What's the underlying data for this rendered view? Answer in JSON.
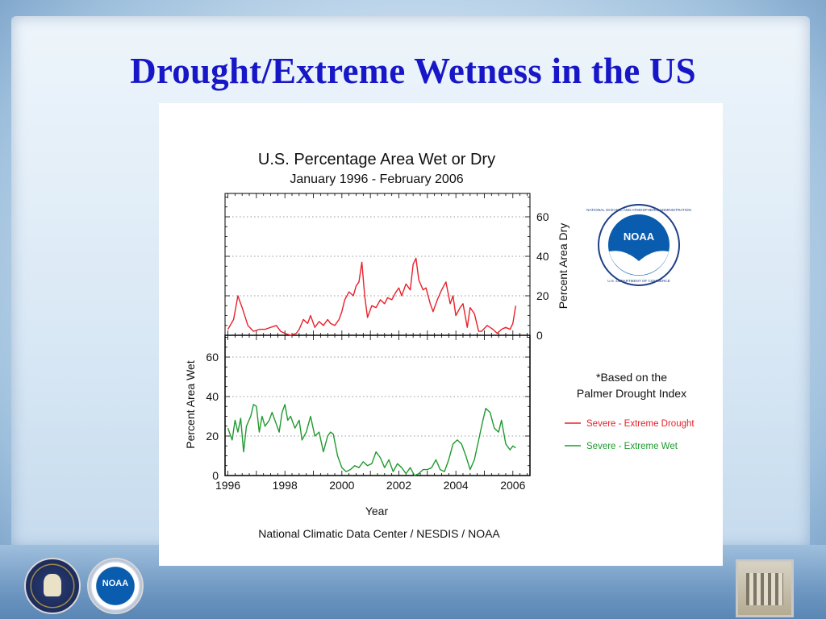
{
  "slide": {
    "title": "Drought/Extreme Wetness in the US"
  },
  "logos": {
    "noaa_text": "NOAA",
    "noaa_ring_text": "NATIONAL OCEANIC AND ATMOSPHERIC ADMINISTRATION",
    "noaa_bottom_text": "U.S. DEPARTMENT OF COMMERCE"
  },
  "colors": {
    "title": "#1717c8",
    "dry": "#e8202a",
    "wet": "#1f9a2e"
  },
  "chart_data": {
    "type": "line",
    "title": "U.S. Percentage Area Wet or Dry",
    "subtitle": "January 1996 - February  2006",
    "xlabel": "Year",
    "source": "National Climatic Data Center / NESDIS / NOAA",
    "note_line1": "*Based on the",
    "note_line2": "Palmer Drought Index",
    "grid": "dotted horizontal",
    "legend_placement": "right",
    "x_ticks": [
      "1996",
      "1998",
      "2000",
      "2002",
      "2004",
      "2006"
    ],
    "xlim": [
      1995.9,
      2006.6
    ],
    "panels": [
      {
        "ylabel": "Percent Area Dry",
        "y_axis_side": "right",
        "ylim": [
          0,
          70
        ],
        "y_ticks": [
          "0",
          "20",
          "40",
          "60"
        ],
        "series": [
          {
            "name": "Severe - Extreme Drought",
            "color": "#e8202a",
            "x": [
              1996.0,
              1996.2,
              1996.35,
              1996.5,
              1996.7,
              1996.9,
              1997.1,
              1997.3,
              1997.5,
              1997.7,
              1997.85,
              1998.0,
              1998.2,
              1998.4,
              1998.5,
              1998.65,
              1998.8,
              1998.9,
              1999.05,
              1999.2,
              1999.35,
              1999.5,
              1999.6,
              1999.75,
              1999.9,
              2000.0,
              2000.1,
              2000.25,
              2000.4,
              2000.5,
              2000.6,
              2000.7,
              2000.8,
              2000.9,
              2001.05,
              2001.2,
              2001.35,
              2001.5,
              2001.6,
              2001.75,
              2001.9,
              2002.0,
              2002.1,
              2002.25,
              2002.4,
              2002.5,
              2002.6,
              2002.7,
              2002.85,
              2002.95,
              2003.1,
              2003.2,
              2003.35,
              2003.5,
              2003.65,
              2003.8,
              2003.9,
              2004.0,
              2004.15,
              2004.25,
              2004.4,
              2004.5,
              2004.65,
              2004.8,
              2004.9,
              2005.1,
              2005.3,
              2005.45,
              2005.6,
              2005.75,
              2005.9,
              2006.0,
              2006.1
            ],
            "values": [
              3,
              8,
              20,
              14,
              5,
              2,
              3,
              3,
              4,
              5,
              2,
              1,
              0,
              1,
              3,
              8,
              6,
              10,
              4,
              7,
              5,
              8,
              6,
              5,
              8,
              12,
              18,
              22,
              20,
              25,
              27,
              37,
              20,
              9,
              15,
              14,
              18,
              16,
              19,
              18,
              22,
              24,
              20,
              26,
              23,
              36,
              39,
              28,
              23,
              24,
              16,
              12,
              18,
              23,
              27,
              16,
              20,
              10,
              14,
              16,
              4,
              14,
              11,
              2,
              2,
              5,
              3,
              1,
              3,
              4,
              3,
              6,
              15
            ]
          }
        ]
      },
      {
        "ylabel": "Percent Area Wet",
        "y_axis_side": "left",
        "ylim": [
          0,
          70
        ],
        "y_ticks": [
          "0",
          "20",
          "40",
          "60"
        ],
        "series": [
          {
            "name": "Severe - Extreme Wet",
            "color": "#1f9a2e",
            "x": [
              1996.0,
              1996.15,
              1996.25,
              1996.35,
              1996.45,
              1996.55,
              1996.65,
              1996.8,
              1996.9,
              1997.0,
              1997.1,
              1997.2,
              1997.3,
              1997.45,
              1997.55,
              1997.7,
              1997.8,
              1997.9,
              1998.0,
              1998.1,
              1998.2,
              1998.35,
              1998.5,
              1998.6,
              1998.75,
              1998.9,
              1999.05,
              1999.2,
              1999.35,
              1999.5,
              1999.6,
              1999.7,
              1999.85,
              2000.0,
              2000.15,
              2000.3,
              2000.45,
              2000.6,
              2000.75,
              2000.9,
              2001.05,
              2001.2,
              2001.35,
              2001.5,
              2001.65,
              2001.8,
              2001.95,
              2002.1,
              2002.25,
              2002.4,
              2002.55,
              2002.7,
              2002.85,
              2003.0,
              2003.15,
              2003.3,
              2003.45,
              2003.6,
              2003.75,
              2003.9,
              2004.05,
              2004.2,
              2004.35,
              2004.5,
              2004.65,
              2004.8,
              2004.95,
              2005.05,
              2005.2,
              2005.35,
              2005.5,
              2005.6,
              2005.75,
              2005.9,
              2006.0,
              2006.1
            ],
            "values": [
              24,
              18,
              28,
              22,
              29,
              12,
              25,
              30,
              36,
              35,
              22,
              30,
              25,
              28,
              32,
              26,
              22,
              32,
              36,
              28,
              30,
              24,
              28,
              18,
              22,
              30,
              20,
              22,
              12,
              20,
              22,
              21,
              10,
              4,
              2,
              3,
              5,
              4,
              7,
              5,
              6,
              12,
              9,
              4,
              8,
              2,
              6,
              4,
              1,
              4,
              0,
              1,
              3,
              3,
              4,
              8,
              3,
              2,
              8,
              16,
              18,
              16,
              10,
              3,
              8,
              18,
              28,
              34,
              32,
              24,
              22,
              28,
              16,
              13,
              15,
              14
            ]
          }
        ]
      }
    ]
  }
}
